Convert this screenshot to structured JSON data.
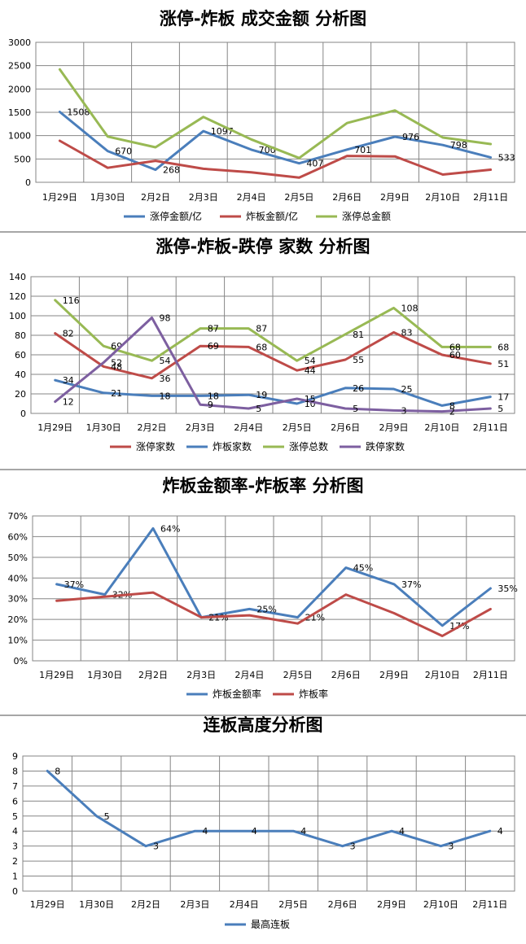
{
  "chart_data": [
    {
      "type": "line",
      "title": "涨停-炸板 成交金额 分析图",
      "categories": [
        "1月29日",
        "1月30日",
        "2月2日",
        "2月3日",
        "2月4日",
        "2月5日",
        "2月6日",
        "2月9日",
        "2月10日",
        "2月11日"
      ],
      "ylim": [
        0,
        3000
      ],
      "yticks": [
        0,
        500,
        1000,
        1500,
        2000,
        2500,
        3000
      ],
      "ytick_labels": [
        "0",
        "500",
        "1000",
        "1500",
        "2000",
        "2500",
        "3000"
      ],
      "grid": true,
      "legend": "bottom",
      "series": [
        {
          "name": "涨停金额/亿",
          "color": "#4a7ebb",
          "values": [
            1508,
            670,
            268,
            1097,
            700,
            407,
            701,
            976,
            798,
            533
          ],
          "labels": [
            "1508",
            "670",
            "268",
            "1097",
            "700",
            "407",
            "701",
            "976",
            "798",
            "533"
          ]
        },
        {
          "name": "炸板金额/亿",
          "color": "#be4b48",
          "values": [
            890,
            310,
            460,
            290,
            215,
            100,
            565,
            555,
            165,
            270
          ]
        },
        {
          "name": "涨停总金额",
          "color": "#98b954",
          "values": [
            2420,
            980,
            750,
            1400,
            920,
            520,
            1270,
            1540,
            960,
            820
          ]
        }
      ]
    },
    {
      "type": "line",
      "title": "涨停-炸板-跌停 家数 分析图",
      "categories": [
        "1月29日",
        "1月30日",
        "2月2日",
        "2月3日",
        "2月4日",
        "2月5日",
        "2月6日",
        "2月9日",
        "2月10日",
        "2月11日"
      ],
      "ylim": [
        0,
        140
      ],
      "yticks": [
        0,
        20,
        40,
        60,
        80,
        100,
        120,
        140
      ],
      "ytick_labels": [
        "0",
        "20",
        "40",
        "60",
        "80",
        "100",
        "120",
        "140"
      ],
      "grid": true,
      "legend": "bottom",
      "series": [
        {
          "name": "涨停家数",
          "color": "#be4b48",
          "values": [
            82,
            48,
            36,
            69,
            68,
            44,
            55,
            83,
            60,
            51
          ],
          "labels": [
            "82",
            "48",
            "36",
            "69",
            "68",
            "44",
            "55",
            "83",
            "60",
            "51"
          ]
        },
        {
          "name": "炸板家数",
          "color": "#4a7ebb",
          "values": [
            34,
            21,
            18,
            18,
            19,
            10,
            26,
            25,
            8,
            17
          ],
          "labels": [
            "34",
            "21",
            "18",
            "18",
            "19",
            "10",
            "26",
            "25",
            "8",
            "17"
          ]
        },
        {
          "name": "涨停总数",
          "color": "#98b954",
          "values": [
            116,
            69,
            54,
            87,
            87,
            54,
            81,
            108,
            68,
            68
          ],
          "labels": [
            "116",
            "69",
            "54",
            "87",
            "87",
            "54",
            "81",
            "108",
            "68",
            "68"
          ]
        },
        {
          "name": "跌停家数",
          "color": "#7d5fa0",
          "values": [
            12,
            52,
            98,
            9,
            5,
            15,
            5,
            3,
            2,
            5
          ],
          "labels": [
            "12",
            "52",
            "98",
            "9",
            "5",
            "15",
            "5",
            "3",
            "2",
            "5"
          ]
        }
      ]
    },
    {
      "type": "line",
      "title": "炸板金额率-炸板率 分析图",
      "categories": [
        "1月29日",
        "1月30日",
        "2月2日",
        "2月3日",
        "2月4日",
        "2月5日",
        "2月6日",
        "2月9日",
        "2月10日",
        "2月11日"
      ],
      "ylim": [
        0,
        70
      ],
      "yticks": [
        0,
        10,
        20,
        30,
        40,
        50,
        60,
        70
      ],
      "ytick_labels": [
        "0%",
        "10%",
        "20%",
        "30%",
        "40%",
        "50%",
        "60%",
        "70%"
      ],
      "grid": true,
      "legend": "bottom",
      "series": [
        {
          "name": "炸板金额率",
          "color": "#4a7ebb",
          "values": [
            37,
            32,
            64,
            21,
            25,
            21,
            45,
            37,
            17,
            35
          ],
          "labels": [
            "37%",
            "32%",
            "64%",
            "21%",
            "25%",
            "21%",
            "45%",
            "37%",
            "17%",
            "35%"
          ]
        },
        {
          "name": "炸板率",
          "color": "#be4b48",
          "values": [
            29,
            31,
            33,
            21,
            22,
            18,
            32,
            23,
            12,
            25
          ]
        }
      ]
    },
    {
      "type": "line",
      "title": "连板高度分析图",
      "categories": [
        "1月29日",
        "1月30日",
        "2月2日",
        "2月3日",
        "2月4日",
        "2月5日",
        "2月6日",
        "2月9日",
        "2月10日",
        "2月11日"
      ],
      "ylim": [
        0,
        9
      ],
      "yticks": [
        0,
        1,
        2,
        3,
        4,
        5,
        6,
        7,
        8,
        9
      ],
      "ytick_labels": [
        "0",
        "1",
        "2",
        "3",
        "4",
        "5",
        "6",
        "7",
        "8",
        "9"
      ],
      "grid": true,
      "legend": "bottom",
      "series": [
        {
          "name": "最高连板",
          "color": "#4a7ebb",
          "values": [
            8,
            5,
            3,
            4,
            4,
            4,
            3,
            4,
            3,
            4
          ],
          "labels": [
            "8",
            "5",
            "3",
            "4",
            "4",
            "4",
            "3",
            "4",
            "3",
            "4"
          ]
        }
      ]
    }
  ]
}
